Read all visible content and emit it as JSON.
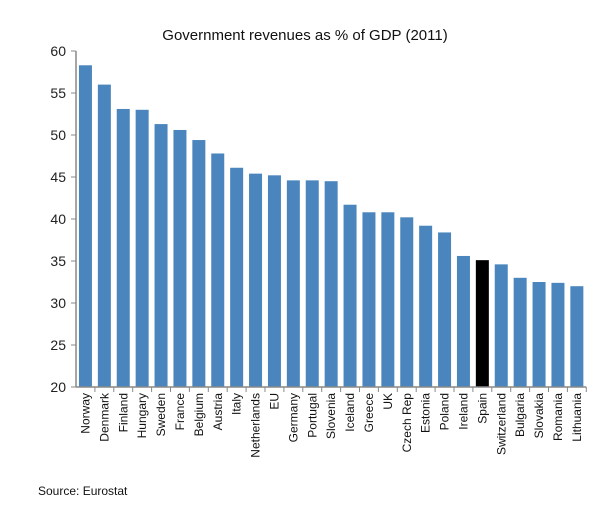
{
  "chart_data": {
    "type": "bar",
    "title": "Government revenues as % of GDP (2011)",
    "xlabel": "",
    "ylabel": "",
    "ylim": [
      20,
      60
    ],
    "yticks": [
      20,
      25,
      30,
      35,
      40,
      45,
      50,
      55,
      60
    ],
    "grid": false,
    "categories": [
      "Norway",
      "Denmark",
      "Finland",
      "Hungary",
      "Sweden",
      "France",
      "Belgium",
      "Austria",
      "Italy",
      "Netherlands",
      "EU",
      "Germany",
      "Portugal",
      "Slovenia",
      "Iceland",
      "Greece",
      "UK",
      "Czech Rep",
      "Estonia",
      "Poland",
      "Ireland",
      "Spain",
      "Switzerland",
      "Bulgaria",
      "Slovakia",
      "Romania",
      "Lithuania"
    ],
    "values": [
      58.3,
      56.0,
      53.1,
      53.0,
      51.3,
      50.6,
      49.4,
      47.8,
      46.1,
      45.4,
      45.2,
      44.6,
      44.6,
      44.5,
      41.7,
      40.8,
      40.8,
      40.2,
      39.2,
      38.4,
      35.6,
      35.1,
      34.6,
      33.0,
      32.5,
      32.4,
      32.0
    ],
    "colors": {
      "default": "#4a86bd",
      "highlight": "#000000"
    },
    "highlight_category": "Spain"
  },
  "source": "Source: Eurostat"
}
